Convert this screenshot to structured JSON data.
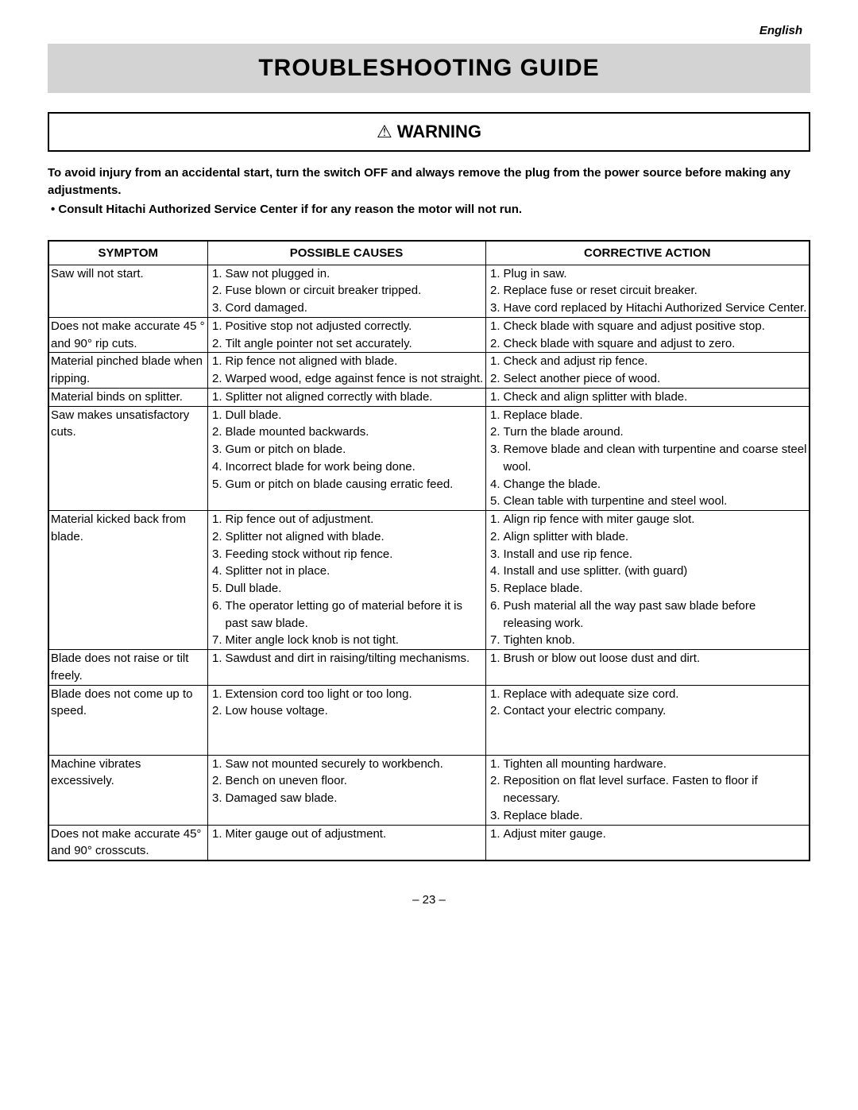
{
  "language_label": "English",
  "title": "TROUBLESHOOTING GUIDE",
  "warning_label": "WARNING",
  "lead_text": "To avoid injury from an accidental start, turn the switch OFF and always remove the plug from the power source before making any adjustments.",
  "bullet_text": "•  Consult Hitachi Authorized Service Center if for any reason the motor will not run.",
  "columns": [
    "SYMPTOM",
    "POSSIBLE CAUSES",
    "CORRECTIVE ACTION"
  ],
  "rows": [
    {
      "symptom": "Saw will not start.",
      "causes": [
        "Saw not plugged in.",
        "Fuse blown or circuit breaker tripped.",
        "Cord damaged."
      ],
      "actions": [
        "Plug in saw.",
        "Replace fuse or reset circuit breaker.",
        "Have cord replaced by Hitachi Authorized Service Center."
      ]
    },
    {
      "symptom": "Does not make accurate 45 ° and 90° rip cuts.",
      "causes": [
        "Positive stop not adjusted correctly.",
        "Tilt angle pointer not set accurately."
      ],
      "actions": [
        "Check blade with square and adjust positive stop.",
        "Check blade with square and adjust to zero."
      ]
    },
    {
      "symptom": "Material pinched blade when ripping.",
      "causes": [
        "Rip fence not aligned with blade.",
        "Warped wood, edge against fence is not straight."
      ],
      "actions": [
        "Check and adjust rip fence.",
        "Select another piece of wood."
      ]
    },
    {
      "symptom": "Material binds on splitter.",
      "causes": [
        "Splitter not aligned correctly with blade."
      ],
      "actions": [
        "Check and align splitter with blade."
      ]
    },
    {
      "symptom": "Saw makes unsatisfactory cuts.",
      "causes": [
        "Dull blade.",
        "Blade mounted backwards.",
        "Gum or pitch on blade.",
        "Incorrect blade for work being done.",
        "Gum or pitch on blade causing erratic feed."
      ],
      "actions": [
        "Replace blade.",
        "Turn the blade around.",
        "Remove blade and clean with turpentine and coarse steel wool.",
        "Change the blade.",
        "Clean table with turpentine and steel wool."
      ]
    },
    {
      "symptom": "Material kicked back from blade.",
      "causes": [
        "Rip fence out of adjustment.",
        "Splitter not aligned with blade.",
        "Feeding stock without rip fence.",
        "Splitter not in place.",
        "Dull blade.",
        "The operator letting go of material before it is past saw blade.",
        "Miter angle lock knob is not tight."
      ],
      "actions": [
        "Align rip fence with miter gauge slot.",
        "Align splitter with blade.",
        "Install and use rip fence.",
        "Install and use splitter. (with guard)",
        "Replace blade.",
        "Push material all the way past saw blade before releasing work.",
        "Tighten knob."
      ]
    },
    {
      "symptom": "Blade does not raise or tilt freely.",
      "causes": [
        "Sawdust and dirt in raising/tilting mechanisms."
      ],
      "actions": [
        "Brush or blow out loose dust and dirt."
      ]
    },
    {
      "symptom": "Blade does not come up to speed.",
      "causes": [
        "Extension cord too light or too long.",
        "Low house voltage."
      ],
      "actions": [
        "Replace with adequate size cord.",
        "Contact your electric company."
      ],
      "pad_after": 2
    },
    {
      "symptom": "Machine vibrates excessively.",
      "causes": [
        "Saw not mounted securely to workbench.",
        "Bench on uneven floor.",
        "Damaged saw blade."
      ],
      "actions": [
        "Tighten all mounting hardware.",
        "Reposition on flat level surface. Fasten to floor if necessary.",
        "Replace blade."
      ]
    },
    {
      "symptom": "Does not make accurate 45° and 90° crosscuts.",
      "causes": [
        "Miter gauge out of adjustment."
      ],
      "actions": [
        "Adjust miter gauge."
      ]
    }
  ],
  "page_number": "– 23 –"
}
